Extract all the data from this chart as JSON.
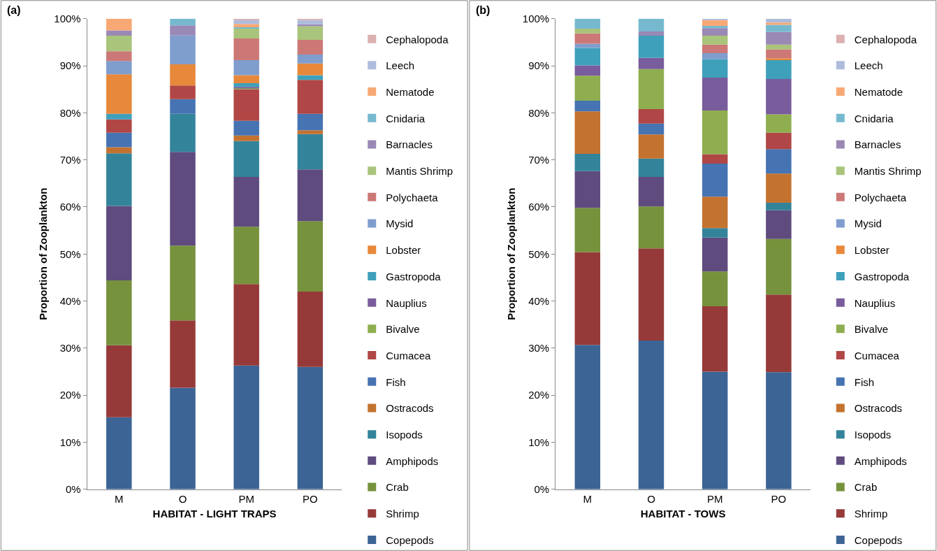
{
  "chart_data": [
    {
      "type": "bar",
      "title": "(a)",
      "xlabel": "HABITAT - LIGHT TRAPS",
      "ylabel": "Proportion of Zooplankton",
      "stacked": true,
      "legend": "right",
      "categories": [
        "M",
        "O",
        "PM",
        "PO"
      ],
      "ylim": [
        0,
        100
      ],
      "yticks": [
        {
          "value": 0,
          "label": "0%"
        },
        {
          "value": 10,
          "label": "10%"
        },
        {
          "value": 20,
          "label": "20%"
        },
        {
          "value": 30,
          "label": "30%"
        },
        {
          "value": 40,
          "label": "40%"
        },
        {
          "value": 50,
          "label": "50%"
        },
        {
          "value": 60,
          "label": "60%"
        },
        {
          "value": 70,
          "label": "70%"
        },
        {
          "value": 80,
          "label": "80%"
        },
        {
          "value": 90,
          "label": "90%"
        },
        {
          "value": 100,
          "label": "100%"
        }
      ],
      "series": [
        {
          "name": "Copepods",
          "color": "#3c6495",
          "values": [
            15.3,
            21.6,
            26.3,
            26.0
          ]
        },
        {
          "name": "Shrimp",
          "color": "#963a39",
          "values": [
            15.3,
            14.3,
            17.3,
            16.0
          ]
        },
        {
          "name": "Crab",
          "color": "#76923c",
          "values": [
            13.8,
            15.9,
            12.2,
            15.0
          ]
        },
        {
          "name": "Amphipods",
          "color": "#5f4b7e",
          "values": [
            15.8,
            19.9,
            10.6,
            11.0
          ]
        },
        {
          "name": "Isopods",
          "color": "#33849a",
          "values": [
            11.2,
            8.1,
            7.6,
            7.5
          ]
        },
        {
          "name": "Ostracods",
          "color": "#c4722f",
          "values": [
            1.3,
            0,
            1.2,
            0.8
          ]
        },
        {
          "name": "Fish",
          "color": "#4673b2",
          "values": [
            3.1,
            3.1,
            3.1,
            3.5
          ]
        },
        {
          "name": "Cumacea",
          "color": "#b04645",
          "values": [
            2.8,
            2.9,
            6.7,
            7.2
          ]
        },
        {
          "name": "Bivalve",
          "color": "#8fae4f",
          "values": [
            0,
            0,
            0.2,
            0
          ]
        },
        {
          "name": "Nauplius",
          "color": "#795c9b",
          "values": [
            0,
            0,
            0.3,
            0
          ]
        },
        {
          "name": "Gastropoda",
          "color": "#3fa0bb",
          "values": [
            1.2,
            0,
            0.8,
            1.0
          ]
        },
        {
          "name": "Lobster",
          "color": "#e8883a",
          "values": [
            8.4,
            4.5,
            1.7,
            2.5
          ]
        },
        {
          "name": "Mysid",
          "color": "#7f9dcd",
          "values": [
            2.8,
            6.2,
            3.2,
            1.9
          ]
        },
        {
          "name": "Polychaeta",
          "color": "#cc7877",
          "values": [
            2.1,
            0,
            4.6,
            3.1
          ]
        },
        {
          "name": "Mantis Shrimp",
          "color": "#a9c47b",
          "values": [
            3.3,
            0,
            2.1,
            2.9
          ]
        },
        {
          "name": "Barnacles",
          "color": "#9a88b5",
          "values": [
            1.1,
            2.1,
            0,
            0.4
          ]
        },
        {
          "name": "Cnidaria",
          "color": "#76b9cf",
          "values": [
            0,
            1.4,
            0.3,
            0
          ]
        },
        {
          "name": "Nematode",
          "color": "#f8a874",
          "values": [
            2.5,
            0,
            0.7,
            0
          ]
        },
        {
          "name": "Leech",
          "color": "#aebcdc",
          "values": [
            0,
            0,
            0.9,
            0.9
          ]
        },
        {
          "name": "Cephalopoda",
          "color": "#dcb0b0",
          "values": [
            0,
            0,
            0.2,
            0.3
          ]
        }
      ]
    },
    {
      "type": "bar",
      "title": "(b)",
      "xlabel": "HABITAT - TOWS",
      "ylabel": "Proportion of Zooplankton",
      "stacked": true,
      "legend": "right",
      "categories": [
        "M",
        "O",
        "PM",
        "PO"
      ],
      "ylim": [
        0,
        100
      ],
      "yticks": [
        {
          "value": 0,
          "label": "0%"
        },
        {
          "value": 10,
          "label": "10%"
        },
        {
          "value": 20,
          "label": "20%"
        },
        {
          "value": 30,
          "label": "30%"
        },
        {
          "value": 40,
          "label": "40%"
        },
        {
          "value": 50,
          "label": "50%"
        },
        {
          "value": 60,
          "label": "60%"
        },
        {
          "value": 70,
          "label": "70%"
        },
        {
          "value": 80,
          "label": "80%"
        },
        {
          "value": 90,
          "label": "90%"
        },
        {
          "value": 100,
          "label": "100%"
        }
      ],
      "series": [
        {
          "name": "Copepods",
          "color": "#3c6495",
          "values": [
            30.7,
            31.6,
            25.0,
            24.9
          ]
        },
        {
          "name": "Shrimp",
          "color": "#963a39",
          "values": [
            19.7,
            19.6,
            13.9,
            16.5
          ]
        },
        {
          "name": "Crab",
          "color": "#76923c",
          "values": [
            9.4,
            8.9,
            7.4,
            11.8
          ]
        },
        {
          "name": "Amphipods",
          "color": "#5f4b7e",
          "values": [
            7.8,
            6.3,
            7.2,
            6.1
          ]
        },
        {
          "name": "Isopods",
          "color": "#33849a",
          "values": [
            3.7,
            3.9,
            2.0,
            1.6
          ]
        },
        {
          "name": "Ostracods",
          "color": "#c4722f",
          "values": [
            9.0,
            5.1,
            6.7,
            6.2
          ]
        },
        {
          "name": "Fish",
          "color": "#4673b2",
          "values": [
            2.3,
            2.3,
            7.0,
            5.2
          ]
        },
        {
          "name": "Cumacea",
          "color": "#b04645",
          "values": [
            0,
            3.1,
            2.0,
            3.5
          ]
        },
        {
          "name": "Bivalve",
          "color": "#8fae4f",
          "values": [
            5.3,
            8.5,
            9.3,
            3.9
          ]
        },
        {
          "name": "Nauplius",
          "color": "#795c9b",
          "values": [
            2.2,
            2.4,
            7.0,
            7.5
          ]
        },
        {
          "name": "Gastropoda",
          "color": "#3fa0bb",
          "values": [
            3.7,
            4.7,
            3.9,
            4.0
          ]
        },
        {
          "name": "Lobster",
          "color": "#e8883a",
          "values": [
            0,
            0,
            0,
            0.4
          ]
        },
        {
          "name": "Mysid",
          "color": "#7f9dcd",
          "values": [
            0.9,
            0,
            1.3,
            0
          ]
        },
        {
          "name": "Polychaeta",
          "color": "#cc7877",
          "values": [
            2.2,
            0,
            1.8,
            1.9
          ]
        },
        {
          "name": "Mantis Shrimp",
          "color": "#a9c47b",
          "values": [
            1.0,
            0,
            1.9,
            1.0
          ]
        },
        {
          "name": "Barnacles",
          "color": "#9a88b5",
          "values": [
            0,
            0.9,
            1.6,
            2.7
          ]
        },
        {
          "name": "Cnidaria",
          "color": "#76b9cf",
          "values": [
            2.1,
            2.7,
            0.5,
            1.5
          ]
        },
        {
          "name": "Nematode",
          "color": "#f8a874",
          "values": [
            0,
            0,
            1.2,
            0.5
          ]
        },
        {
          "name": "Leech",
          "color": "#aebcdc",
          "values": [
            0,
            0,
            0.3,
            0.8
          ]
        },
        {
          "name": "Cephalopoda",
          "color": "#dcb0b0",
          "values": [
            0,
            0,
            0,
            0
          ]
        }
      ]
    }
  ]
}
